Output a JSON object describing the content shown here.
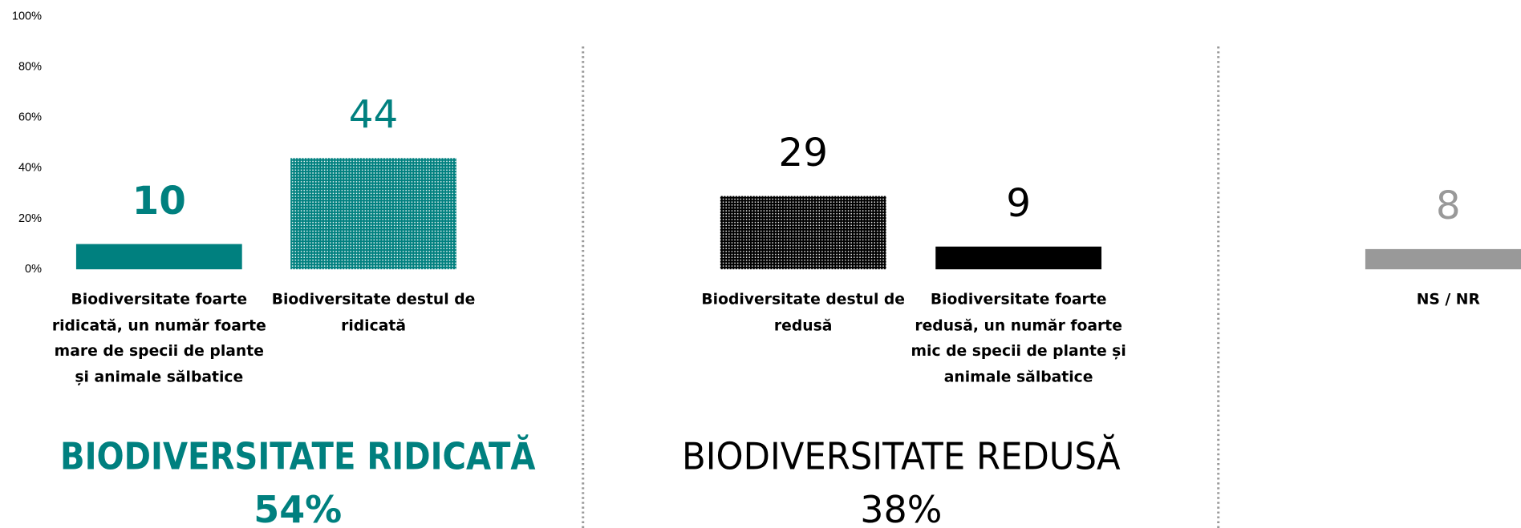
{
  "chart_data": {
    "type": "bar",
    "categories": [
      "Biodiversitate foarte ridicată, un număr foarte mare de specii de plante și animale sălbatice",
      "Biodiversitate destul de ridicată",
      "Biodiversitate destul de redusă",
      "Biodiversitate foarte redusă, un număr foarte mic de specii de plante și animale sălbatice",
      "NS / NR"
    ],
    "values": [
      10,
      44,
      29,
      9,
      8
    ],
    "colors": [
      "#00807f",
      "#00807f",
      "#000000",
      "#000000",
      "#999999"
    ],
    "patterns": [
      false,
      true,
      true,
      false,
      false
    ],
    "value_label_bold": [
      true,
      false,
      false,
      false,
      false
    ],
    "ylim": [
      0,
      100
    ],
    "yticks": [
      {
        "value": 0,
        "label": "0%"
      },
      {
        "value": 20,
        "label": "20%"
      },
      {
        "value": 40,
        "label": "40%"
      },
      {
        "value": 60,
        "label": "60%"
      },
      {
        "value": 80,
        "label": "80%"
      },
      {
        "value": 100,
        "label": "100%"
      }
    ],
    "groups": [
      {
        "title": "BIODIVERSITATE RIDICATĂ",
        "total_label": "54%",
        "color": "#00807f",
        "bold": true
      },
      {
        "title": "BIODIVERSITATE REDUSĂ",
        "total_label": "38%",
        "color": "#000000",
        "bold": false
      }
    ]
  }
}
